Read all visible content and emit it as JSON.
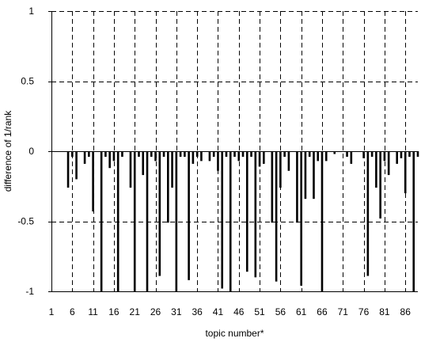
{
  "chart_data": {
    "type": "bar",
    "title": "",
    "xlabel": "topic number*",
    "ylabel": "difference of 1/rank",
    "ylim": [
      -1,
      1
    ],
    "xlim": [
      1,
      89
    ],
    "x_ticks": [
      1,
      6,
      11,
      16,
      21,
      26,
      31,
      36,
      41,
      46,
      51,
      56,
      61,
      66,
      71,
      76,
      81,
      86
    ],
    "x_tick_labels": [
      "1",
      "6",
      "11",
      "16",
      "21",
      "26",
      "31",
      "36",
      "41",
      "46",
      "51",
      "56",
      "61",
      "66",
      "71",
      "76",
      "81",
      "86"
    ],
    "y_ticks": [
      1,
      0.5,
      0,
      -0.5,
      -1
    ],
    "y_tick_labels": [
      "1",
      "0.5",
      "0",
      "-0.5",
      "-1"
    ],
    "grid": {
      "x": "dashed",
      "y": "dashed"
    },
    "bar_color": "#000000",
    "x": [
      5,
      6,
      7,
      9,
      10,
      11,
      13,
      14,
      15,
      16,
      17,
      18,
      20,
      21,
      22,
      23,
      24,
      25,
      26,
      27,
      28,
      29,
      30,
      31,
      32,
      33,
      34,
      35,
      36,
      37,
      39,
      40,
      41,
      42,
      43,
      44,
      45,
      46,
      47,
      48,
      49,
      50,
      51,
      52,
      54,
      55,
      56,
      57,
      58,
      60,
      61,
      62,
      63,
      64,
      65,
      66,
      67,
      69,
      72,
      73,
      76,
      77,
      78,
      79,
      80,
      81,
      82,
      84,
      85,
      86,
      87,
      88,
      89
    ],
    "values": [
      -0.26,
      -0.04,
      -0.2,
      -0.09,
      -0.04,
      -0.43,
      -1.0,
      -0.04,
      -0.12,
      -0.07,
      -1.0,
      -0.04,
      -0.26,
      -1.0,
      -0.04,
      -0.17,
      -1.0,
      -0.04,
      -0.07,
      -0.89,
      -0.04,
      -0.51,
      -0.26,
      -1.0,
      -0.04,
      -0.04,
      -0.92,
      -0.09,
      -0.04,
      -0.07,
      -0.07,
      -0.04,
      -0.14,
      -0.98,
      -0.04,
      -1.0,
      -0.04,
      -0.07,
      -0.04,
      -0.86,
      -0.04,
      -0.9,
      -0.11,
      -0.09,
      -0.51,
      -0.93,
      -0.26,
      -0.04,
      -0.14,
      -0.51,
      -0.96,
      -0.34,
      -0.04,
      -0.34,
      -0.07,
      -1.0,
      -0.07,
      -0.02,
      -0.04,
      -0.09,
      -0.05,
      -0.89,
      -0.04,
      -0.26,
      -0.48,
      -0.07,
      -0.17,
      -0.09,
      -0.05,
      -0.3,
      -0.04,
      -1.0,
      -0.04
    ]
  }
}
